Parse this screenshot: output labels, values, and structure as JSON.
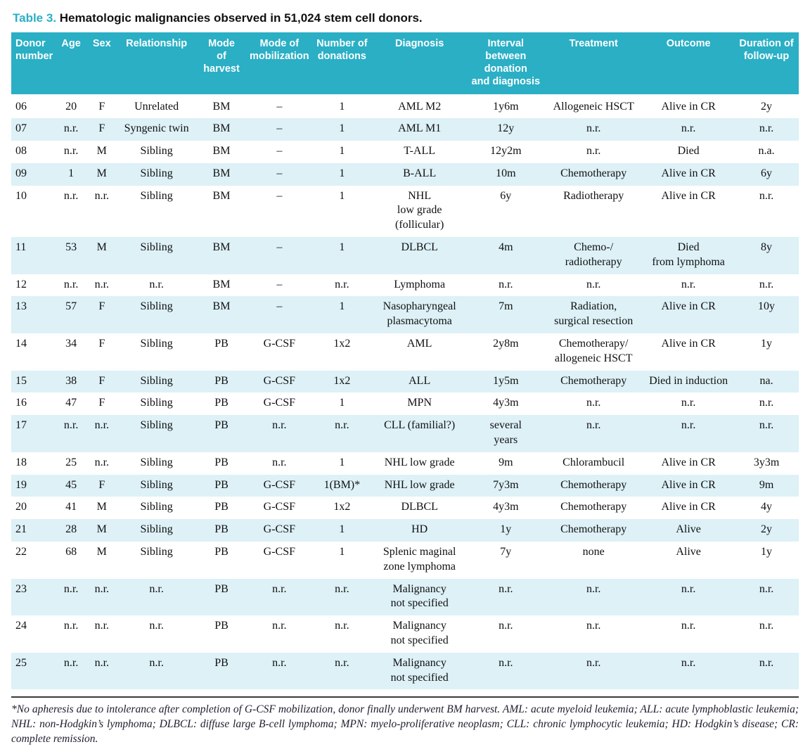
{
  "title": {
    "label": "Table 3.",
    "text": "Hematologic malignancies observed in 51,024 stem cell donors."
  },
  "colors": {
    "accent_teal": "#2aafc5",
    "stripe_bg": "#ddf1f7",
    "header_text": "#ffffff",
    "body_text": "#111111"
  },
  "table": {
    "columns": [
      "Donor\nnumber",
      "Age",
      "Sex",
      "Relationship",
      "Mode\nof harvest",
      "Mode of\nmobilization",
      "Number of\ndonations",
      "Diagnosis",
      "Interval\nbetween donation\nand diagnosis",
      "Treatment",
      "Outcome",
      "Duration of\nfollow-up"
    ],
    "rows": [
      [
        "06",
        "20",
        "F",
        "Unrelated",
        "BM",
        "–",
        "1",
        "AML M2",
        "1y6m",
        "Allogeneic HSCT",
        "Alive in CR",
        "2y"
      ],
      [
        "07",
        "n.r.",
        "F",
        "Syngenic twin",
        "BM",
        "–",
        "1",
        "AML M1",
        "12y",
        "n.r.",
        "n.r.",
        "n.r."
      ],
      [
        "08",
        "n.r.",
        "M",
        "Sibling",
        "BM",
        "–",
        "1",
        "T-ALL",
        "12y2m",
        "n.r.",
        "Died",
        "n.a."
      ],
      [
        "09",
        "1",
        "M",
        "Sibling",
        "BM",
        "–",
        "1",
        "B-ALL",
        "10m",
        "Chemotherapy",
        "Alive in CR",
        "6y"
      ],
      [
        "10",
        "n.r.",
        "n.r.",
        "Sibling",
        "BM",
        "–",
        "1",
        "NHL\nlow grade (follicular)",
        "6y",
        "Radiotherapy",
        "Alive in CR",
        "n.r."
      ],
      [
        "11",
        "53",
        "M",
        "Sibling",
        "BM",
        "–",
        "1",
        "DLBCL",
        "4m",
        "Chemo-/\nradiotherapy",
        "Died\nfrom lymphoma",
        "8y"
      ],
      [
        "12",
        "n.r.",
        "n.r.",
        "n.r.",
        "BM",
        "–",
        "n.r.",
        "Lymphoma",
        "n.r.",
        "n.r.",
        "n.r.",
        "n.r."
      ],
      [
        "13",
        "57",
        "F",
        "Sibling",
        "BM",
        "–",
        "1",
        "Nasopharyngeal\nplasmacytoma",
        "7m",
        "Radiation,\nsurgical resection",
        "Alive in CR",
        "10y"
      ],
      [
        "14",
        "34",
        "F",
        "Sibling",
        "PB",
        "G-CSF",
        "1x2",
        "AML",
        "2y8m",
        "Chemotherapy/\nallogeneic HSCT",
        "Alive in CR",
        "1y"
      ],
      [
        "15",
        "38",
        "F",
        "Sibling",
        "PB",
        "G-CSF",
        "1x2",
        "ALL",
        "1y5m",
        "Chemotherapy",
        "Died in induction",
        "na."
      ],
      [
        "16",
        "47",
        "F",
        "Sibling",
        "PB",
        "G-CSF",
        "1",
        "MPN",
        "4y3m",
        "n.r.",
        "n.r.",
        "n.r."
      ],
      [
        "17",
        "n.r.",
        "n.r.",
        "Sibling",
        "PB",
        "n.r.",
        "n.r.",
        "CLL (familial?)",
        "several\nyears",
        "n.r.",
        "n.r.",
        "n.r."
      ],
      [
        "18",
        "25",
        "n.r.",
        "Sibling",
        "PB",
        "n.r.",
        "1",
        "NHL low grade",
        "9m",
        "Chlorambucil",
        "Alive in CR",
        "3y3m"
      ],
      [
        "19",
        "45",
        "F",
        "Sibling",
        "PB",
        "G-CSF",
        "1(BM)*",
        "NHL low grade",
        "7y3m",
        "Chemotherapy",
        "Alive in CR",
        "9m"
      ],
      [
        "20",
        "41",
        "M",
        "Sibling",
        "PB",
        "G-CSF",
        "1x2",
        "DLBCL",
        "4y3m",
        "Chemotherapy",
        "Alive in CR",
        "4y"
      ],
      [
        "21",
        "28",
        "M",
        "Sibling",
        "PB",
        "G-CSF",
        "1",
        "HD",
        "1y",
        "Chemotherapy",
        "Alive",
        "2y"
      ],
      [
        "22",
        "68",
        "M",
        "Sibling",
        "PB",
        "G-CSF",
        "1",
        "Splenic maginal\nzone lymphoma",
        "7y",
        "none",
        "Alive",
        "1y"
      ],
      [
        "23",
        "n.r.",
        "n.r.",
        "n.r.",
        "PB",
        "n.r.",
        "n.r.",
        "Malignancy\nnot specified",
        "n.r.",
        "n.r.",
        "n.r.",
        "n.r."
      ],
      [
        "24",
        "n.r.",
        "n.r.",
        "n.r.",
        "PB",
        "n.r.",
        "n.r.",
        "Malignancy\nnot specified",
        "n.r.",
        "n.r.",
        "n.r.",
        "n.r."
      ],
      [
        "25",
        "n.r.",
        "n.r.",
        "n.r.",
        "PB",
        "n.r.",
        "n.r.",
        "Malignancy\nnot specified",
        "n.r.",
        "n.r.",
        "n.r.",
        "n.r."
      ]
    ]
  },
  "footnote": "*No apheresis due to intolerance after completion of G-CSF mobilization, donor finally underwent BM harvest. AML: acute myeloid leukemia; ALL: acute lymphoblastic leukemia; NHL: non-Hodgkin’s lymphoma; DLBCL: diffuse large B-cell lymphoma; MPN: myelo-proliferative neoplasm; CLL: chronic lymphocytic leukemia; HD: Hodgkin’s disease; CR: complete remission."
}
